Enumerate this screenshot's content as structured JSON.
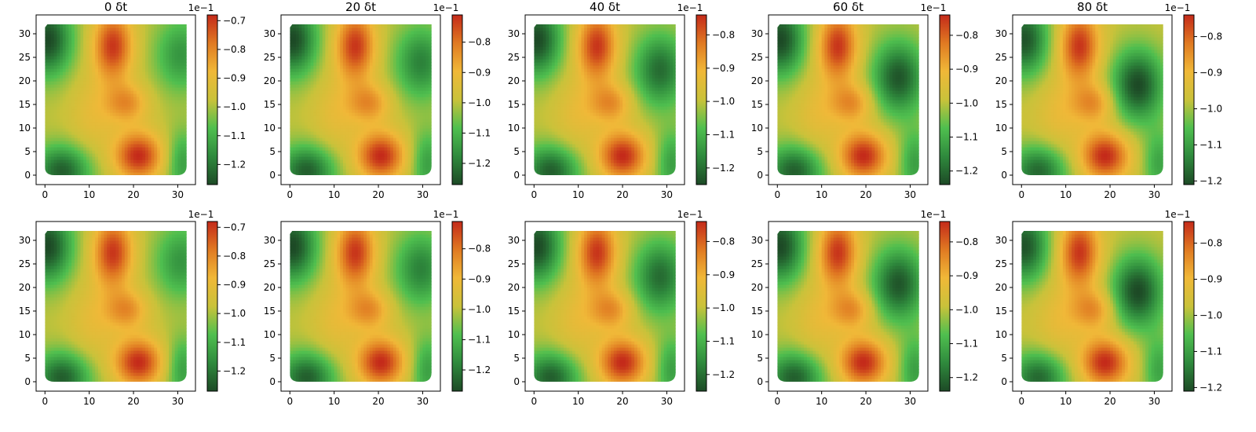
{
  "chart_data": {
    "type": "heatmap",
    "layout": {
      "rows": 2,
      "cols": 5
    },
    "colormap": {
      "name": "green-yellow-red",
      "stops": [
        "#1d4a26",
        "#2f8a3d",
        "#4fbf4f",
        "#c9c23a",
        "#f0b838",
        "#e07a22",
        "#c42a1a"
      ]
    },
    "x_range": [
      0,
      32
    ],
    "y_range": [
      0,
      32
    ],
    "xlim": [
      -2,
      34
    ],
    "ylim": [
      -2,
      34
    ],
    "x_ticks": [
      0,
      10,
      20,
      30
    ],
    "y_ticks": [
      0,
      5,
      10,
      15,
      20,
      25,
      30
    ],
    "x_tick_labels": [
      "0",
      "10",
      "20",
      "30"
    ],
    "y_tick_labels": [
      "0",
      "5",
      "10",
      "15",
      "20",
      "25",
      "30"
    ],
    "colorbar_multiplier": "1e−1",
    "panels": [
      {
        "row": 0,
        "col": 0,
        "title": "0 δt",
        "phase": 0.0,
        "vmin": -1.27,
        "vmax": -0.68,
        "cbar_ticks": [
          -1.2,
          -1.1,
          -1.0,
          -0.9,
          -0.8,
          -0.7
        ],
        "cbar_tick_labels": [
          "−1.2",
          "−1.1",
          "−1.0",
          "−0.9",
          "−0.8",
          "−0.7"
        ]
      },
      {
        "row": 0,
        "col": 1,
        "title": "20 δt",
        "phase": 0.25,
        "vmin": -1.27,
        "vmax": -0.71,
        "cbar_ticks": [
          -1.2,
          -1.1,
          -1.0,
          -0.9,
          -0.8
        ],
        "cbar_tick_labels": [
          "−1.2",
          "−1.1",
          "−1.0",
          "−0.9",
          "−0.8"
        ]
      },
      {
        "row": 0,
        "col": 2,
        "title": "40 δt",
        "phase": 0.5,
        "vmin": -1.25,
        "vmax": -0.74,
        "cbar_ticks": [
          -1.2,
          -1.1,
          -1.0,
          -0.9,
          -0.8
        ],
        "cbar_tick_labels": [
          "−1.2",
          "−1.1",
          "−1.0",
          "−0.9",
          "−0.8"
        ]
      },
      {
        "row": 0,
        "col": 3,
        "title": "60 δt",
        "phase": 0.75,
        "vmin": -1.24,
        "vmax": -0.74,
        "cbar_ticks": [
          -1.2,
          -1.1,
          -1.0,
          -0.9,
          -0.8
        ],
        "cbar_tick_labels": [
          "−1.2",
          "−1.1",
          "−1.0",
          "−0.9",
          "−0.8"
        ]
      },
      {
        "row": 0,
        "col": 4,
        "title": "80 δt",
        "phase": 1.0,
        "vmin": -1.21,
        "vmax": -0.74,
        "cbar_ticks": [
          -1.2,
          -1.1,
          -1.0,
          -0.9,
          -0.8
        ],
        "cbar_tick_labels": [
          "−1.2",
          "−1.1",
          "−1.0",
          "−0.9",
          "−0.8"
        ]
      },
      {
        "row": 1,
        "col": 0,
        "title": "",
        "phase": 0.0,
        "vmin": -1.27,
        "vmax": -0.68,
        "cbar_ticks": [
          -1.2,
          -1.1,
          -1.0,
          -0.9,
          -0.8,
          -0.7
        ],
        "cbar_tick_labels": [
          "−1.2",
          "−1.1",
          "−1.0",
          "−0.9",
          "−0.8",
          "−0.7"
        ]
      },
      {
        "row": 1,
        "col": 1,
        "title": "",
        "phase": 0.25,
        "vmin": -1.27,
        "vmax": -0.71,
        "cbar_ticks": [
          -1.2,
          -1.1,
          -1.0,
          -0.9,
          -0.8
        ],
        "cbar_tick_labels": [
          "−1.2",
          "−1.1",
          "−1.0",
          "−0.9",
          "−0.8"
        ]
      },
      {
        "row": 1,
        "col": 2,
        "title": "",
        "phase": 0.5,
        "vmin": -1.25,
        "vmax": -0.74,
        "cbar_ticks": [
          -1.2,
          -1.1,
          -1.0,
          -0.9,
          -0.8
        ],
        "cbar_tick_labels": [
          "−1.2",
          "−1.1",
          "−1.0",
          "−0.9",
          "−0.8"
        ]
      },
      {
        "row": 1,
        "col": 3,
        "title": "",
        "phase": 0.75,
        "vmin": -1.24,
        "vmax": -0.74,
        "cbar_ticks": [
          -1.2,
          -1.1,
          -1.0,
          -0.9,
          -0.8
        ],
        "cbar_tick_labels": [
          "−1.2",
          "−1.1",
          "−1.0",
          "−0.9",
          "−0.8"
        ]
      },
      {
        "row": 1,
        "col": 4,
        "title": "",
        "phase": 1.0,
        "vmin": -1.21,
        "vmax": -0.74,
        "cbar_ticks": [
          -1.2,
          -1.1,
          -1.0,
          -0.9,
          -0.8
        ],
        "cbar_tick_labels": [
          "−1.2",
          "−1.1",
          "−1.0",
          "−0.9",
          "−0.8"
        ]
      }
    ]
  }
}
